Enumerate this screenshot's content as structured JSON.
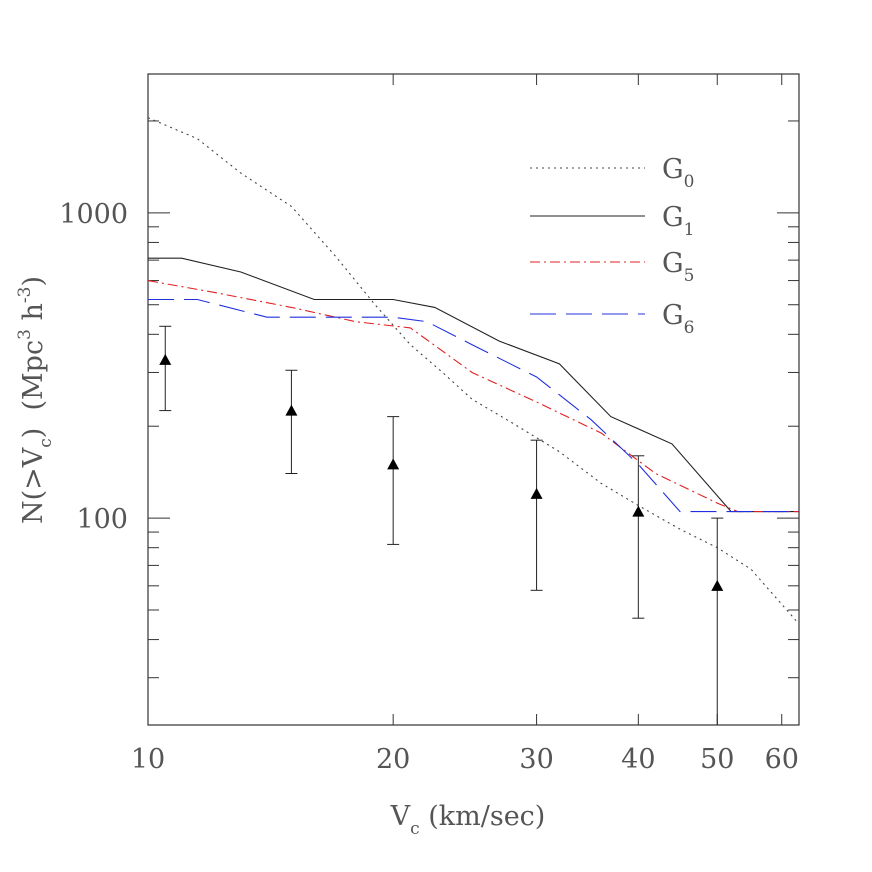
{
  "chart_data": {
    "type": "line",
    "xlabel": {
      "main": "V",
      "sub": "c",
      "rest": " (km/sec)"
    },
    "ylabel": {
      "main": "N(>V",
      "sub": "c",
      "mid": ")  (Mpc",
      "sup1": "3",
      "mid2": " h",
      "sup2": "-3",
      "end": ")"
    },
    "x_scale": "log",
    "y_scale": "log",
    "xlim": [
      10,
      63
    ],
    "ylim": [
      21,
      2850
    ],
    "x_ticks": [
      10,
      20,
      30,
      40,
      50,
      60
    ],
    "x_tick_labels": [
      "10",
      "20",
      "30",
      "40",
      "50",
      "60"
    ],
    "y_ticks": [
      100,
      1000
    ],
    "y_tick_labels": [
      "100",
      "1000"
    ],
    "legend_position": "top-right",
    "series": [
      {
        "name": {
          "main": "G",
          "sub": "0"
        },
        "color": "#444444",
        "dash": "2,4",
        "x": [
          10,
          11.5,
          13,
          15,
          17,
          19,
          21,
          23,
          25,
          28,
          32,
          36,
          40,
          45,
          50,
          55,
          63
        ],
        "y": [
          2050,
          1750,
          1350,
          1050,
          720,
          500,
          370,
          300,
          245,
          205,
          165,
          130,
          110,
          92,
          80,
          68,
          45
        ]
      },
      {
        "name": {
          "main": "G",
          "sub": "1"
        },
        "color": "#222222",
        "dash": "",
        "x": [
          10,
          11,
          13,
          16,
          20,
          22.5,
          27,
          32,
          37,
          44,
          52,
          63
        ],
        "y": [
          710,
          710,
          640,
          520,
          520,
          490,
          380,
          320,
          215,
          175,
          105,
          105
        ]
      },
      {
        "name": {
          "main": "G",
          "sub": "5"
        },
        "color": "#e02020",
        "dash": "10,4,2,4",
        "x": [
          10,
          12,
          15,
          18,
          21,
          25,
          30,
          36,
          42,
          50,
          53,
          63
        ],
        "y": [
          600,
          550,
          490,
          440,
          420,
          300,
          240,
          190,
          140,
          112,
          105,
          105
        ]
      },
      {
        "name": {
          "main": "G",
          "sub": "6"
        },
        "color": "#2030e0",
        "dash": "26,10",
        "x": [
          10,
          11.5,
          14,
          20,
          22,
          25,
          30,
          35,
          40,
          45,
          63
        ],
        "y": [
          520,
          520,
          455,
          455,
          440,
          370,
          290,
          210,
          150,
          105,
          105
        ]
      }
    ],
    "points": {
      "marker": "triangle",
      "color": "#000000",
      "x": [
        10.5,
        15,
        20,
        30,
        40,
        50
      ],
      "y": [
        330,
        225,
        150,
        120,
        105,
        60
      ],
      "y_low": [
        225,
        140,
        82,
        58,
        47,
        21
      ],
      "y_high": [
        425,
        305,
        215,
        180,
        160,
        100
      ]
    }
  }
}
